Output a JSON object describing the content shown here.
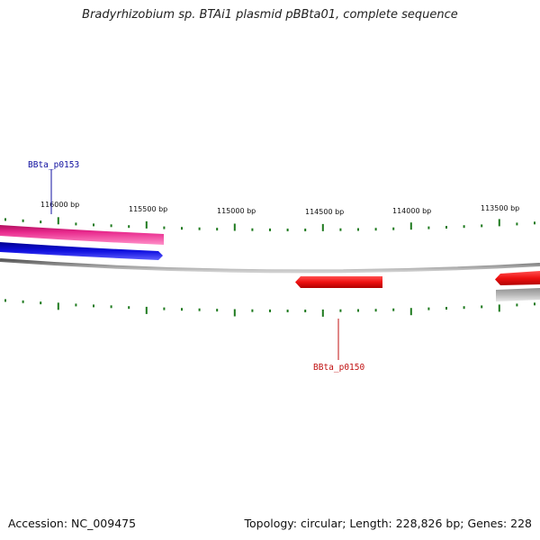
{
  "title": "Bradyrhizobium sp. BTAi1 plasmid pBBta01, complete sequence",
  "footer": {
    "accession": "Accession: NC_009475",
    "summary": "Topology: circular; Length: 228,826 bp; Genes: 228"
  },
  "map": {
    "colors": {
      "background": "#ffffff",
      "backbone": "#808080",
      "ticks": "#1e7a1e",
      "forward_pink": "#e8288c",
      "forward_blue": "#1010e0",
      "reverse_red": "#ee1111",
      "grey_feature": "#a8a8a8",
      "label_blue": "#1010a0",
      "label_red": "#c01010"
    },
    "tick_labels": [
      "116000 bp",
      "115500 bp",
      "115000 bp",
      "114500 bp",
      "114000 bp",
      "113500 bp"
    ],
    "gene_labels": [
      {
        "name": "BBta_p0153",
        "color": "#1010a0"
      },
      {
        "name": "BBta_p0150",
        "color": "#c01010"
      }
    ]
  }
}
